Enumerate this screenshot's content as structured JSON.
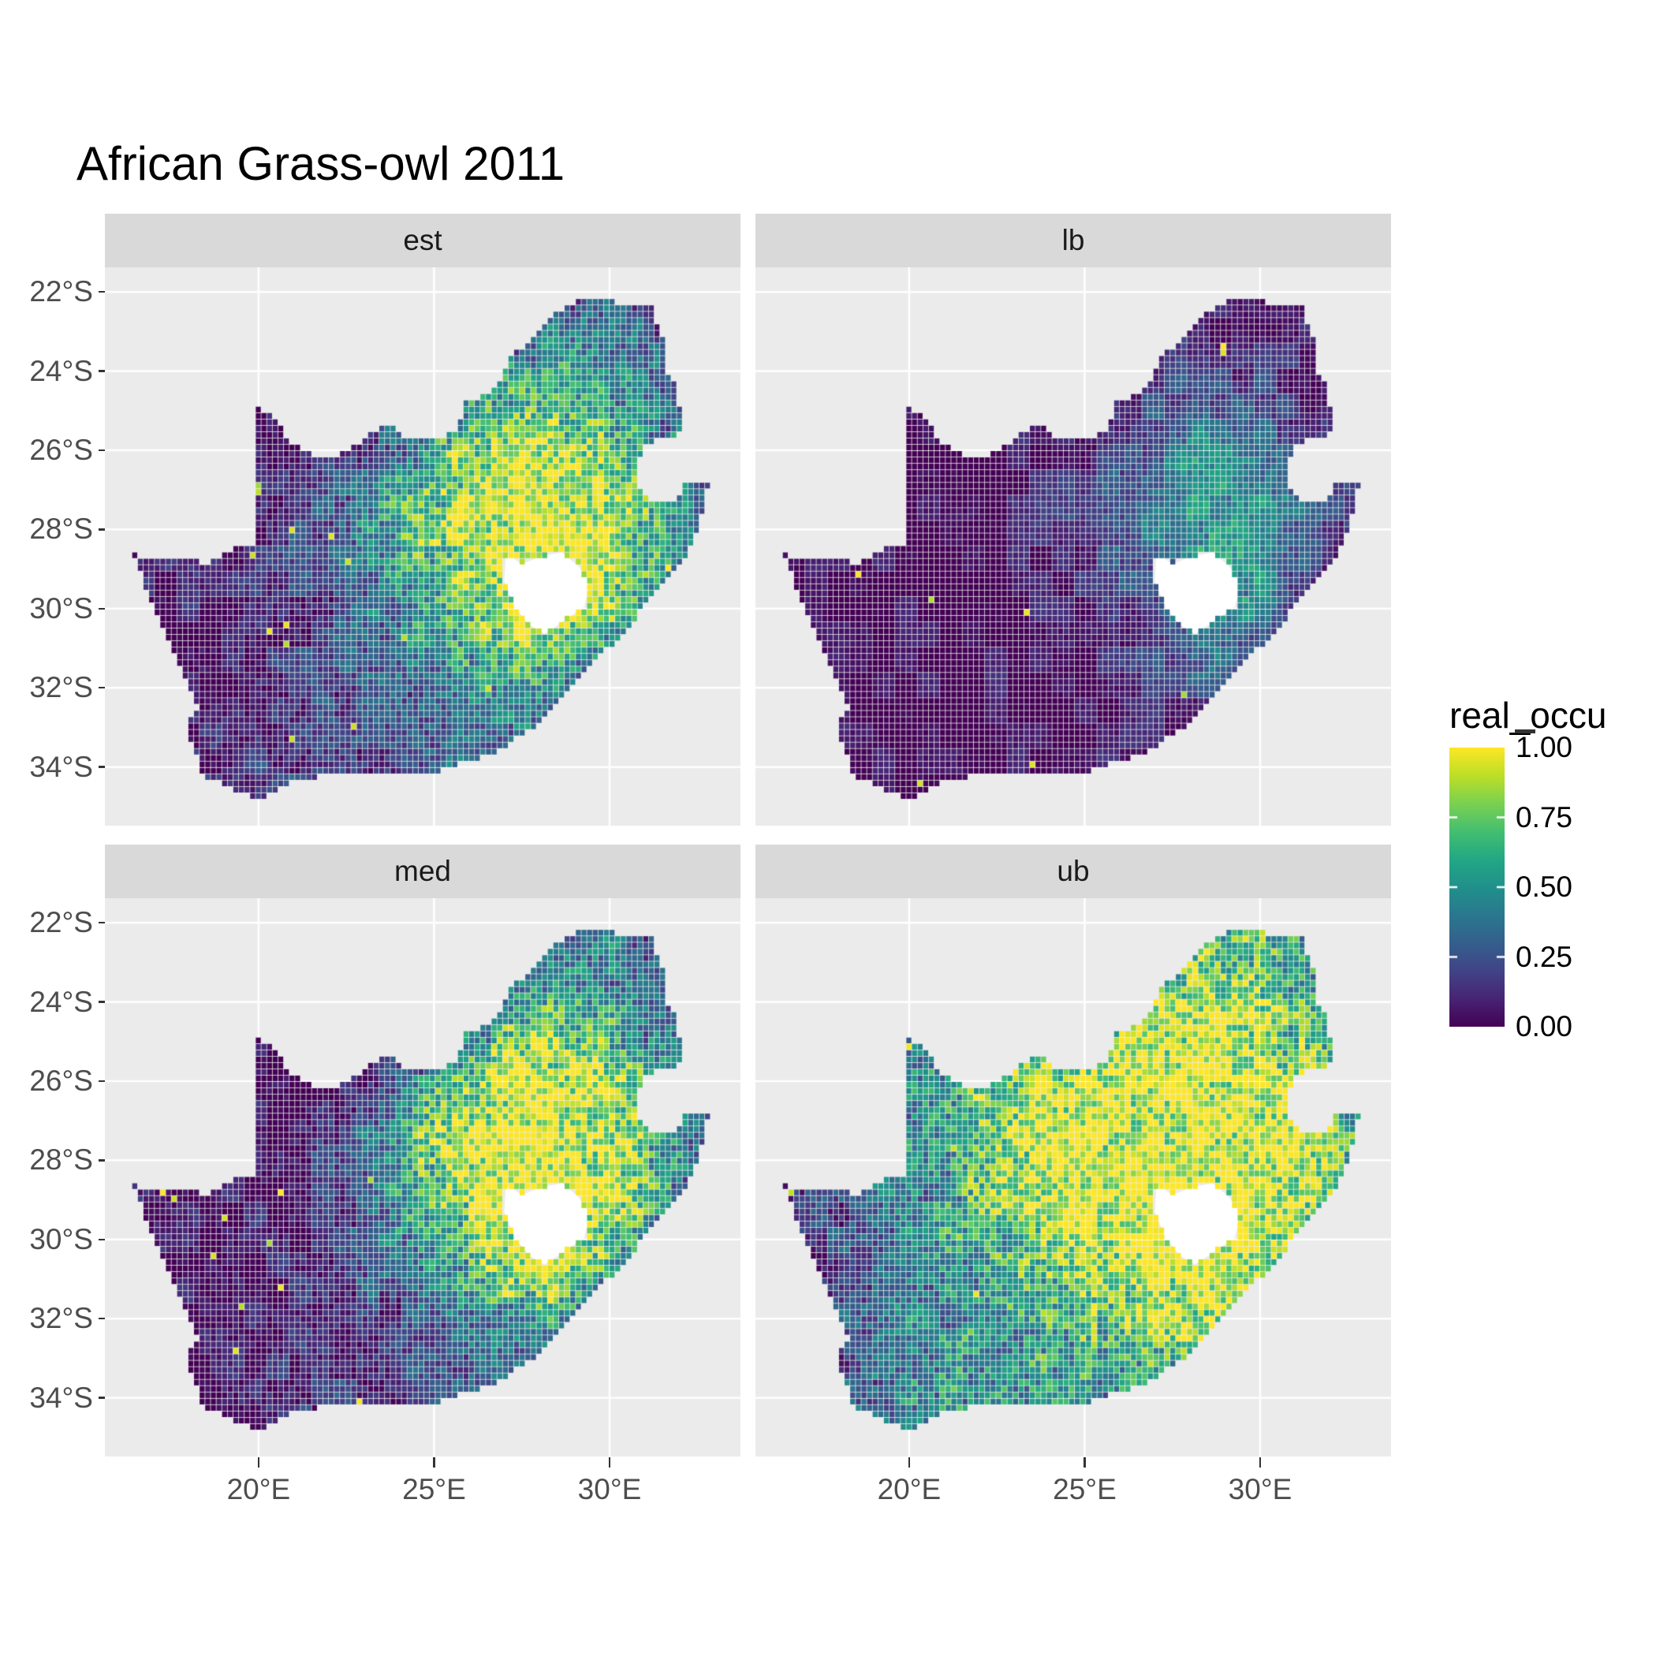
{
  "title": "African Grass-owl 2011",
  "facets": [
    {
      "id": "est",
      "label": "est"
    },
    {
      "id": "lb",
      "label": "lb"
    },
    {
      "id": "med",
      "label": "med"
    },
    {
      "id": "ub",
      "label": "ub"
    }
  ],
  "axes": {
    "y_tick_labels": [
      "22°S",
      "24°S",
      "26°S",
      "28°S",
      "30°S",
      "32°S",
      "34°S"
    ],
    "y_tick_degrees": [
      22,
      24,
      26,
      28,
      30,
      32,
      34
    ],
    "x_tick_labels": [
      "20°E",
      "25°E",
      "30°E"
    ],
    "x_tick_degrees": [
      20,
      25,
      30
    ]
  },
  "legend": {
    "title": "real_occu",
    "tick_labels": [
      "1.00",
      "0.75",
      "0.50",
      "0.25",
      "0.00"
    ],
    "tick_values": [
      1.0,
      0.75,
      0.5,
      0.25,
      0.0
    ]
  },
  "colors": {
    "background": "#FFFFFF",
    "panel_bg": "#EBEBEB",
    "strip_bg": "#D9D9D9",
    "gridline": "#FFFFFF",
    "axis_text": "#4D4D4D",
    "strip_text": "#1A1A1A",
    "tick_mark": "#333333",
    "title_text": "#000000",
    "country_hole": "#FFFFFF",
    "viridis": [
      "#440154",
      "#482475",
      "#414487",
      "#355F8D",
      "#2A788E",
      "#21918C",
      "#22A884",
      "#44BF70",
      "#7AD151",
      "#BDDF26",
      "#FDE725"
    ]
  },
  "chart_data": {
    "type": "heatmap",
    "subtype": "faceted-raster-map",
    "title": "African Grass-owl 2011",
    "legend_title": "real_occu",
    "value_range": [
      0.0,
      1.0
    ],
    "legend_breaks": [
      0.0,
      0.25,
      0.5,
      0.75,
      1.0
    ],
    "facet_titles": [
      "est",
      "lb",
      "med",
      "ub"
    ],
    "x_axis": {
      "label_format": "degrees east",
      "breaks": [
        20,
        25,
        30
      ],
      "range": [
        15.62,
        33.73
      ]
    },
    "y_axis": {
      "label_format": "degrees south",
      "breaks": [
        -22,
        -24,
        -26,
        -28,
        -30,
        -32,
        -34
      ],
      "range": [
        -35.48,
        -21.38
      ]
    },
    "grid": "on",
    "legend_position": "right",
    "cell_size_deg": 0.16,
    "sample_grid_lon_range": [
      16,
      33
    ],
    "sample_grid_lat_range": [
      -21.5,
      -35.5
    ],
    "country_boundary": [
      [
        18.3,
        -32.6
      ],
      [
        17.85,
        -31.6
      ],
      [
        17.05,
        -30.1
      ],
      [
        16.7,
        -29.3
      ],
      [
        16.45,
        -28.63
      ],
      [
        17.2,
        -28.75
      ],
      [
        17.9,
        -28.77
      ],
      [
        18.6,
        -28.85
      ],
      [
        19.3,
        -28.5
      ],
      [
        19.99,
        -28.42
      ],
      [
        19.99,
        -24.92
      ],
      [
        20.55,
        -25.25
      ],
      [
        20.9,
        -25.85
      ],
      [
        21.65,
        -26.15
      ],
      [
        22.35,
        -26.1
      ],
      [
        22.95,
        -25.75
      ],
      [
        23.65,
        -25.35
      ],
      [
        24.35,
        -25.73
      ],
      [
        25.15,
        -25.72
      ],
      [
        25.62,
        -25.5
      ],
      [
        25.9,
        -24.8
      ],
      [
        26.45,
        -24.6
      ],
      [
        26.85,
        -24.3
      ],
      [
        27.2,
        -23.6
      ],
      [
        27.9,
        -23.15
      ],
      [
        28.3,
        -22.65
      ],
      [
        29.1,
        -22.2
      ],
      [
        29.7,
        -22.13
      ],
      [
        30.3,
        -22.3
      ],
      [
        31.2,
        -22.4
      ],
      [
        31.55,
        -23.15
      ],
      [
        31.55,
        -23.95
      ],
      [
        31.95,
        -24.4
      ],
      [
        32.02,
        -25.1
      ],
      [
        32.02,
        -25.6
      ],
      [
        31.4,
        -25.72
      ],
      [
        30.95,
        -25.95
      ],
      [
        30.78,
        -26.5
      ],
      [
        30.78,
        -26.85
      ],
      [
        31.05,
        -27.2
      ],
      [
        31.5,
        -27.32
      ],
      [
        31.97,
        -27.31
      ],
      [
        32.1,
        -26.9
      ],
      [
        32.85,
        -26.86
      ],
      [
        32.55,
        -28.0
      ],
      [
        32.3,
        -28.5
      ],
      [
        32.0,
        -28.85
      ],
      [
        31.6,
        -29.35
      ],
      [
        31.05,
        -29.9
      ],
      [
        30.4,
        -30.65
      ],
      [
        29.9,
        -31.05
      ],
      [
        29.2,
        -31.75
      ],
      [
        28.6,
        -32.25
      ],
      [
        28.0,
        -32.95
      ],
      [
        27.4,
        -33.2
      ],
      [
        26.9,
        -33.6
      ],
      [
        25.65,
        -33.95
      ],
      [
        24.9,
        -34.2
      ],
      [
        23.5,
        -34.1
      ],
      [
        22.15,
        -34.18
      ],
      [
        21.0,
        -34.4
      ],
      [
        20.0,
        -34.82
      ],
      [
        19.35,
        -34.6
      ],
      [
        18.85,
        -34.35
      ],
      [
        18.45,
        -34.35
      ],
      [
        18.35,
        -33.9
      ],
      [
        18.0,
        -33.15
      ],
      [
        17.95,
        -32.8
      ]
    ],
    "lesotho_hole": [
      [
        27.05,
        -28.6
      ],
      [
        27.5,
        -28.88
      ],
      [
        28.05,
        -28.68
      ],
      [
        28.65,
        -28.58
      ],
      [
        29.1,
        -28.92
      ],
      [
        29.45,
        -29.35
      ],
      [
        29.28,
        -29.95
      ],
      [
        28.8,
        -30.25
      ],
      [
        28.15,
        -30.63
      ],
      [
        27.7,
        -30.4
      ],
      [
        27.3,
        -29.95
      ],
      [
        27.0,
        -29.3
      ]
    ],
    "facets": [
      {
        "name": "est",
        "noise": 0.5,
        "spike_prob": 0.004,
        "occupancy_grid": [
          [
            0,
            0,
            0,
            0,
            0,
            0,
            0.05,
            0.1,
            0.2,
            0.25,
            0.15,
            0.05
          ],
          [
            0,
            0,
            0,
            0,
            0.02,
            0.05,
            0.12,
            0.25,
            0.4,
            0.35,
            0.25,
            0.1
          ],
          [
            0,
            0,
            0,
            0.02,
            0.05,
            0.12,
            0.35,
            0.55,
            0.65,
            0.55,
            0.35,
            0.15
          ],
          [
            0.02,
            0.02,
            0.03,
            0.06,
            0.12,
            0.35,
            0.65,
            0.85,
            0.9,
            0.8,
            0.5,
            0.2
          ],
          [
            0.03,
            0.04,
            0.06,
            0.12,
            0.28,
            0.55,
            0.8,
            0.95,
            0.95,
            0.9,
            0.6,
            0.25
          ],
          [
            0.03,
            0.05,
            0.06,
            0.12,
            0.22,
            0.45,
            0.7,
            0.9,
            1,
            0.95,
            0.5,
            0.2
          ],
          [
            0.02,
            0.03,
            0.06,
            0.12,
            0.22,
            0.38,
            0.55,
            0.75,
            0.9,
            0.55,
            0.25,
            0.08
          ],
          [
            0.02,
            0.04,
            0.08,
            0.12,
            0.18,
            0.25,
            0.35,
            0.45,
            0.4,
            0.25,
            0.08,
            0
          ],
          [
            0.02,
            0.06,
            0.12,
            0.18,
            0.22,
            0.22,
            0.28,
            0.28,
            0.2,
            0.08,
            0,
            0
          ],
          [
            0,
            0.02,
            0.08,
            0.12,
            0.12,
            0.12,
            0.12,
            0.1,
            0.05,
            0,
            0,
            0
          ]
        ]
      },
      {
        "name": "lb",
        "noise": 0.3,
        "spike_prob": 0.003,
        "occupancy_grid": [
          [
            0,
            0,
            0,
            0,
            0,
            0,
            0,
            0,
            0,
            0,
            0,
            0
          ],
          [
            0,
            0,
            0,
            0,
            0,
            0,
            0.02,
            0.05,
            0.1,
            0.08,
            0.05,
            0.02
          ],
          [
            0,
            0,
            0,
            0,
            0,
            0.02,
            0.08,
            0.15,
            0.25,
            0.2,
            0.1,
            0.03
          ],
          [
            0,
            0,
            0,
            0,
            0.02,
            0.05,
            0.15,
            0.3,
            0.5,
            0.45,
            0.22,
            0.05
          ],
          [
            0,
            0,
            0,
            0,
            0.02,
            0.08,
            0.22,
            0.4,
            0.55,
            0.5,
            0.28,
            0.06
          ],
          [
            0,
            0,
            0,
            0,
            0.02,
            0.05,
            0.12,
            0.28,
            0.55,
            0.5,
            0.15,
            0.02
          ],
          [
            0,
            0,
            0,
            0,
            0.02,
            0.04,
            0.08,
            0.18,
            0.45,
            0.28,
            0.05,
            0
          ],
          [
            0,
            0,
            0,
            0,
            0,
            0.02,
            0.04,
            0.08,
            0.12,
            0.05,
            0,
            0
          ],
          [
            0,
            0,
            0,
            0.02,
            0.02,
            0.02,
            0.03,
            0.03,
            0.02,
            0,
            0,
            0
          ],
          [
            0,
            0,
            0,
            0,
            0,
            0,
            0,
            0,
            0,
            0,
            0,
            0
          ]
        ]
      },
      {
        "name": "med",
        "noise": 0.55,
        "spike_prob": 0.003,
        "occupancy_grid": [
          [
            0,
            0,
            0,
            0,
            0,
            0,
            0.02,
            0.05,
            0.15,
            0.3,
            0.12,
            0.02
          ],
          [
            0,
            0,
            0,
            0,
            0,
            0.02,
            0.06,
            0.18,
            0.4,
            0.45,
            0.22,
            0.05
          ],
          [
            0,
            0,
            0,
            0,
            0.02,
            0.06,
            0.25,
            0.55,
            0.75,
            0.65,
            0.35,
            0.1
          ],
          [
            0,
            0,
            0.02,
            0.03,
            0.06,
            0.25,
            0.65,
            0.95,
            1,
            0.9,
            0.5,
            0.15
          ],
          [
            0.02,
            0.02,
            0.03,
            0.06,
            0.18,
            0.5,
            0.85,
            1,
            1,
            0.95,
            0.6,
            0.2
          ],
          [
            0.02,
            0.02,
            0.03,
            0.06,
            0.12,
            0.38,
            0.72,
            0.95,
            1,
            1,
            0.45,
            0.15
          ],
          [
            0,
            0.02,
            0.03,
            0.06,
            0.15,
            0.32,
            0.5,
            0.78,
            0.95,
            0.6,
            0.22,
            0.05
          ],
          [
            0,
            0.02,
            0.03,
            0.06,
            0.1,
            0.16,
            0.26,
            0.4,
            0.42,
            0.22,
            0.05,
            0
          ],
          [
            0,
            0.03,
            0.06,
            0.1,
            0.15,
            0.15,
            0.2,
            0.2,
            0.14,
            0.05,
            0,
            0
          ],
          [
            0,
            0,
            0.03,
            0.06,
            0.1,
            0.08,
            0.08,
            0.05,
            0,
            0,
            0,
            0
          ]
        ]
      },
      {
        "name": "ub",
        "noise": 0.55,
        "spike_prob": 0.002,
        "occupancy_grid": [
          [
            0,
            0,
            0,
            0,
            0,
            0,
            0.35,
            0.55,
            0.55,
            0.65,
            0.45,
            0.25
          ],
          [
            0,
            0,
            0,
            0,
            0.25,
            0.35,
            0.55,
            0.65,
            0.75,
            0.75,
            0.55,
            0.35
          ],
          [
            0,
            0,
            0,
            0.35,
            0.55,
            0.65,
            0.85,
            0.92,
            0.92,
            0.85,
            0.65,
            0.45
          ],
          [
            0.05,
            0.1,
            0.25,
            0.55,
            0.75,
            0.88,
            0.97,
            1,
            1,
            0.97,
            0.8,
            0.5
          ],
          [
            0.12,
            0.18,
            0.35,
            0.55,
            0.78,
            0.92,
            1,
            1,
            1,
            1,
            0.9,
            0.6
          ],
          [
            0.12,
            0.22,
            0.32,
            0.45,
            0.65,
            0.88,
            0.97,
            1,
            1,
            1,
            0.8,
            0.5
          ],
          [
            0.08,
            0.12,
            0.28,
            0.45,
            0.58,
            0.72,
            0.88,
            0.97,
            1,
            0.9,
            0.6,
            0.3
          ],
          [
            0.05,
            0.18,
            0.32,
            0.48,
            0.52,
            0.58,
            0.68,
            0.78,
            0.8,
            0.6,
            0.3,
            0.1
          ],
          [
            0.05,
            0.22,
            0.38,
            0.48,
            0.52,
            0.48,
            0.52,
            0.52,
            0.45,
            0.28,
            0.1,
            0
          ],
          [
            0,
            0.12,
            0.28,
            0.38,
            0.42,
            0.36,
            0.32,
            0.25,
            0.1,
            0,
            0,
            0
          ]
        ]
      }
    ]
  }
}
